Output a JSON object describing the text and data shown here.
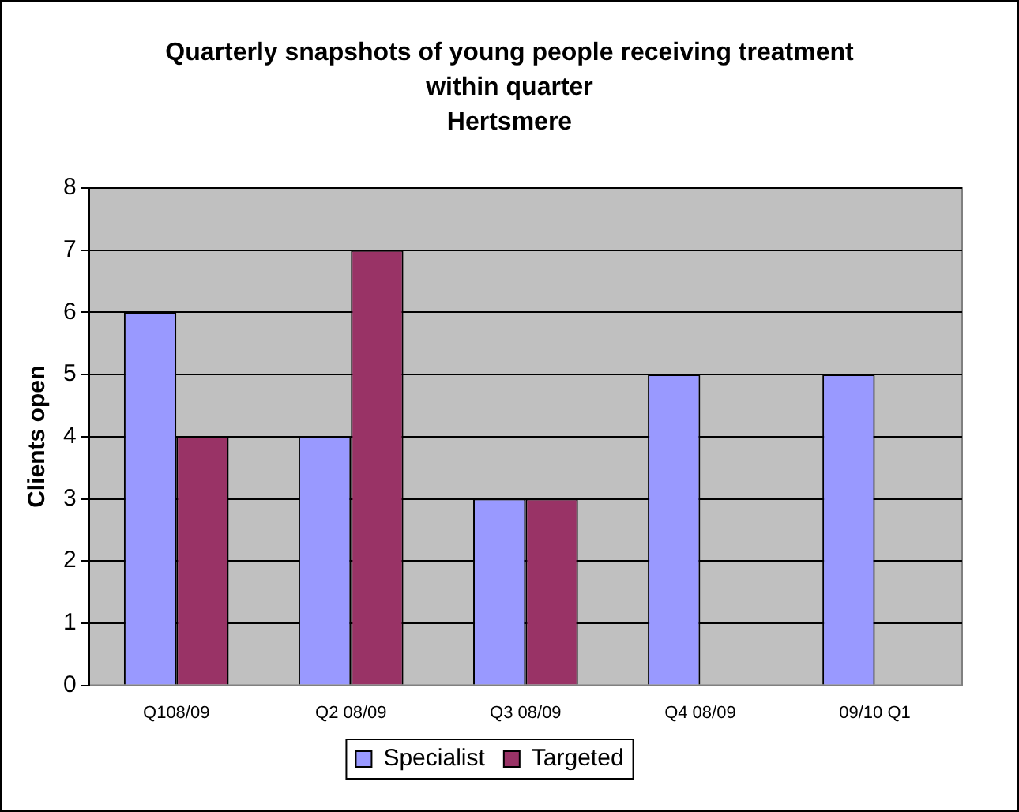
{
  "chart_data": {
    "type": "bar",
    "title": "Quarterly snapshots of young people receiving treatment within quarter",
    "subtitle": "Hertsmere",
    "ylabel": "Clients open",
    "categories": [
      "Q108/09",
      "Q2 08/09",
      "Q3 08/09",
      "Q4 08/09",
      "09/10 Q1"
    ],
    "series": [
      {
        "name": "Specialist",
        "color": "#9999ff",
        "values": [
          6,
          4,
          3,
          5,
          5
        ]
      },
      {
        "name": "Targeted",
        "color": "#993366",
        "values": [
          4,
          7,
          3,
          null,
          null
        ]
      }
    ],
    "ylim": [
      0,
      8
    ],
    "yticks": [
      0,
      1,
      2,
      3,
      4,
      5,
      6,
      7,
      8
    ],
    "grid": "y",
    "legend": "bottom"
  }
}
